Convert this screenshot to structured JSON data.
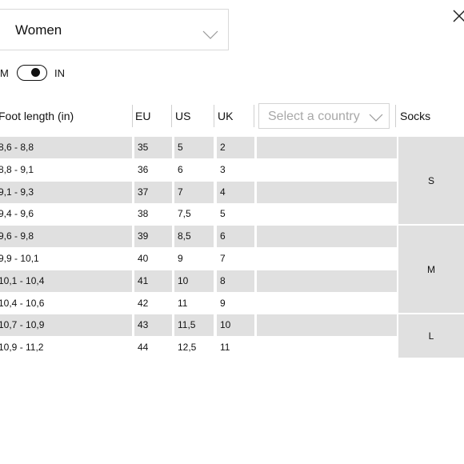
{
  "gender_select": {
    "value": "Women"
  },
  "unit_toggle": {
    "left_label": "M",
    "right_label": "IN"
  },
  "table": {
    "headers": {
      "foot_length": "Foot length (in)",
      "eu": "EU",
      "us": "US",
      "uk": "UK",
      "socks": "Socks"
    },
    "country_select": {
      "placeholder": "Select a country"
    },
    "rows": [
      {
        "foot": "8,6 - 8,8",
        "eu": "35",
        "us": "5",
        "uk": "2"
      },
      {
        "foot": "8,8 - 9,1",
        "eu": "36",
        "us": "6",
        "uk": "3"
      },
      {
        "foot": "9,1 - 9,3",
        "eu": "37",
        "us": "7",
        "uk": "4"
      },
      {
        "foot": "9,4 - 9,6",
        "eu": "38",
        "us": "7,5",
        "uk": "5"
      },
      {
        "foot": "9,6 - 9,8",
        "eu": "39",
        "us": "8,5",
        "uk": "6"
      },
      {
        "foot": "9,9 - 10,1",
        "eu": "40",
        "us": "9",
        "uk": "7"
      },
      {
        "foot": "10,1 - 10,4",
        "eu": "41",
        "us": "10",
        "uk": "8"
      },
      {
        "foot": "10,4 - 10,6",
        "eu": "42",
        "us": "11",
        "uk": "9"
      },
      {
        "foot": "10,7 - 10,9",
        "eu": "43",
        "us": "11,5",
        "uk": "10"
      },
      {
        "foot": "10,9 - 11,2",
        "eu": "44",
        "us": "12,5",
        "uk": "11"
      }
    ],
    "socks": [
      {
        "size": "S",
        "row_span": 4
      },
      {
        "size": "M",
        "row_span": 4
      },
      {
        "size": "L",
        "row_span": 2
      }
    ]
  },
  "icons": {
    "close": "close-icon",
    "chevron": "chevron-down-icon"
  }
}
